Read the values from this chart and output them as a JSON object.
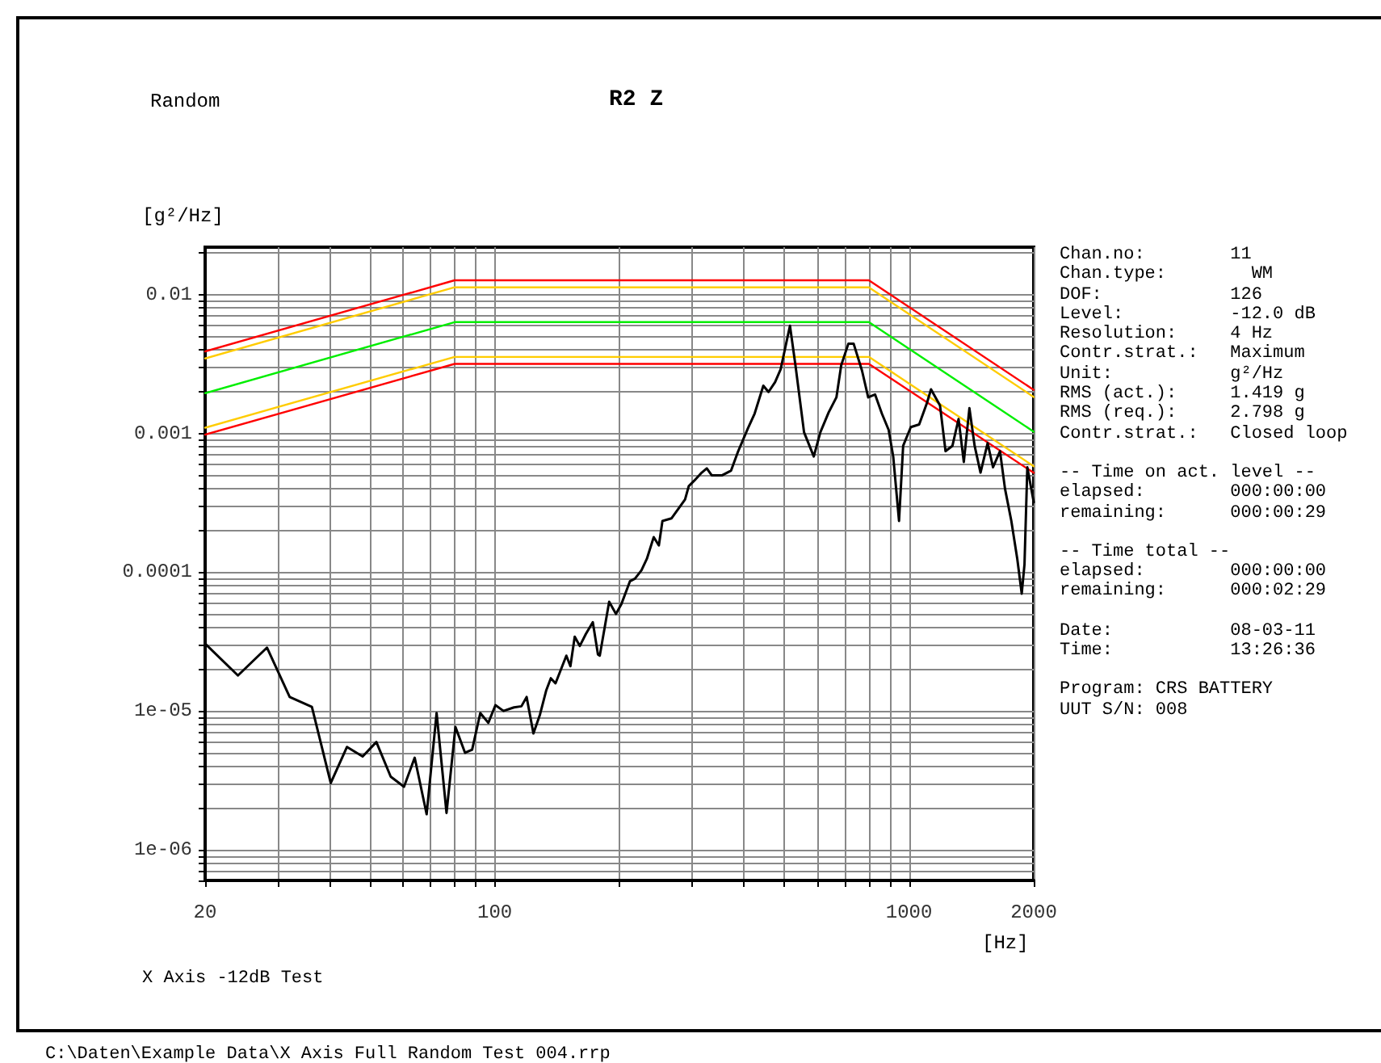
{
  "chart_data": {
    "type": "line",
    "title": "R2 Z",
    "subtitle": "Random",
    "xlabel": "[Hz]",
    "ylabel": "[g²/Hz]",
    "log": "xy",
    "grid": true,
    "marker": "none",
    "line_style": "solid",
    "xlim": [
      20,
      2000
    ],
    "ylim": [
      6e-07,
      0.022
    ],
    "xticks": [
      20,
      100,
      1000,
      2000
    ],
    "yticks": [
      {
        "value": 1e-06,
        "label": "1e-06"
      },
      {
        "value": 1e-05,
        "label": "1e-05"
      },
      {
        "value": 0.0001,
        "label": "0.0001"
      },
      {
        "value": 0.001,
        "label": "0.001"
      },
      {
        "value": 0.01,
        "label": "0.01"
      }
    ],
    "series": [
      {
        "color": "#ff0000",
        "x": [
          20,
          80,
          800,
          2000
        ],
        "values": [
          0.0039,
          0.0127,
          0.0127,
          0.00206
        ]
      },
      {
        "color": "#ffcc00",
        "x": [
          20,
          80,
          800,
          2000
        ],
        "values": [
          0.00347,
          0.0113,
          0.0113,
          0.00183
        ]
      },
      {
        "color": "#00ee00",
        "x": [
          20,
          80,
          800,
          2000
        ],
        "values": [
          0.00195,
          0.00634,
          0.00634,
          0.00103
        ]
      },
      {
        "color": "#ffcc00",
        "x": [
          20,
          80,
          800,
          2000
        ],
        "values": [
          0.0011,
          0.00356,
          0.00356,
          0.00058
        ]
      },
      {
        "color": "#ff0000",
        "x": [
          20,
          80,
          800,
          2000
        ],
        "values": [
          0.00098,
          0.00317,
          0.00317,
          0.00052
        ]
      },
      {
        "color": "#000000",
        "x": [
          20,
          24,
          28.2,
          32,
          36.2,
          40.2,
          44,
          48,
          51.8,
          56.1,
          60.4,
          64.1,
          68.5,
          72.4,
          76.5,
          80.4,
          84.8,
          88.2,
          92.3,
          96.5,
          100.4,
          105,
          111.3,
          116,
          119.4,
          124,
          128.6,
          133.2,
          136.6,
          140.2,
          148.9,
          152.3,
          156,
          160.5,
          165.9,
          172.5,
          177.5,
          179.3,
          188.9,
          196.2,
          202,
          212,
          218,
          226,
          233,
          242,
          249,
          254,
          267,
          288,
          294,
          303,
          316,
          325,
          334,
          354,
          372,
          387,
          408,
          424,
          445,
          458,
          475,
          490,
          516,
          532,
          558,
          589,
          611,
          640,
          668,
          686,
          714,
          735,
          770,
          797,
          828,
          860,
          893,
          916,
          946,
          968,
          1010,
          1058,
          1105,
          1130,
          1188,
          1225,
          1273,
          1317,
          1356,
          1399,
          1440,
          1488,
          1548,
          1595,
          1658,
          1705,
          1766,
          1825,
          1871,
          1900,
          1930,
          2000
        ],
        "values": [
          3.05e-05,
          1.8e-05,
          2.86e-05,
          1.26e-05,
          1.07e-05,
          3.02e-06,
          5.5e-06,
          4.7e-06,
          5.97e-06,
          3.36e-06,
          2.84e-06,
          4.6e-06,
          1.8e-06,
          9.66e-06,
          1.84e-06,
          7.66e-06,
          4.99e-06,
          5.26e-06,
          9.66e-06,
          8.2e-06,
          1.1e-05,
          1e-05,
          1.06e-05,
          1.08e-05,
          1.26e-05,
          6.88e-06,
          9.4e-06,
          1.41e-05,
          1.72e-05,
          1.58e-05,
          2.5e-05,
          2.1e-05,
          3.43e-05,
          2.94e-05,
          3.58e-05,
          4.36e-05,
          2.55e-05,
          2.5e-05,
          6.12e-05,
          5e-05,
          5.85e-05,
          8.59e-05,
          8.98e-05,
          0.000103,
          0.000125,
          0.000179,
          0.000156,
          0.000234,
          0.000244,
          0.000334,
          0.000417,
          0.000456,
          0.000522,
          0.00056,
          0.000499,
          0.000499,
          0.00054,
          0.000745,
          0.00108,
          0.00139,
          0.00221,
          0.00199,
          0.00234,
          0.0029,
          0.00597,
          0.0031,
          0.00102,
          0.000682,
          0.00102,
          0.00142,
          0.00182,
          0.0031,
          0.00444,
          0.00444,
          0.00284,
          0.00182,
          0.00191,
          0.00139,
          0.00106,
          0.000682,
          0.000234,
          0.000814,
          0.00111,
          0.00116,
          0.00166,
          0.00208,
          0.00159,
          0.000745,
          0.000814,
          0.00127,
          0.000623,
          0.00152,
          0.000814,
          0.000522,
          0.000851,
          0.00057,
          0.000745,
          0.000399,
          0.000234,
          0.000125,
          7e-05,
          0.000114,
          0.00057,
          0.000319
        ]
      }
    ],
    "annotations": [
      "Chan.no:        11\nChan.type:        WM\nDOF:            126\nLevel:          -12.0 dB\nResolution:     4 Hz\nContr.strat.:   Maximum\nUnit:           g²/Hz\nRMS (act.):     1.419 g\nRMS (req.):     2.798 g\nContr.strat.:   Closed loop",
      "-- Time on act. level --\nelapsed:        000:00:00\nremaining:      000:00:29",
      "-- Time total --\nelapsed:        000:00:00\nremaining:      000:02:29",
      "Date:           08-03-11\nTime:           13:26:36",
      "Program: CRS BATTERY\nUUT S/N: 008",
      "X Axis -12dB Test",
      "C:\\Daten\\Example Data\\X Axis Full Random Test 004.rrp"
    ]
  }
}
